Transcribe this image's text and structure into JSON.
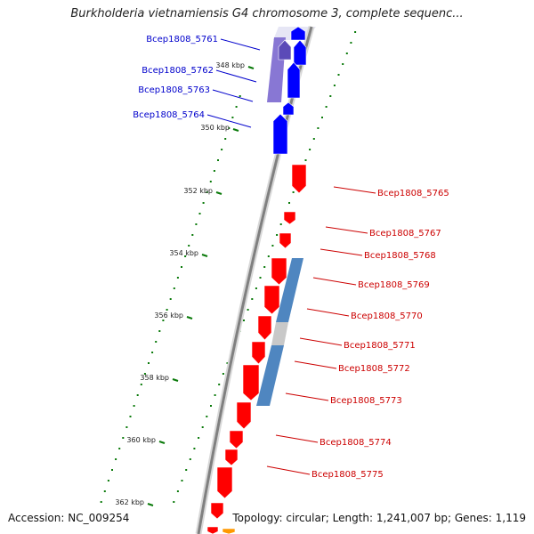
{
  "title": "Burkholderia vietnamiensis G4 chromosome 3, complete sequenc...",
  "footer": {
    "accession": "Accession: NC_009254",
    "topology": "Topology: circular; Length: 1,241,007 bp; Genes: 1,119"
  },
  "colors": {
    "forward_gene": "#ff0000",
    "reverse_gene": "#0000ff",
    "cog_light_blue": "#4f86c0",
    "cog_purple": "#7b68cf",
    "cog_gray": "#cccccc",
    "backbone": "#808080",
    "tick_mark": "#0a7a0a",
    "forward_label": "#cc0000",
    "reverse_label": "#0000cc"
  },
  "ticks": [
    "348 kbp",
    "350 kbp",
    "352 kbp",
    "354 kbp",
    "356 kbp",
    "358 kbp",
    "360 kbp",
    "362 kbp"
  ],
  "genes": [
    {
      "name": "Bcep1808_5761",
      "strand": "reverse"
    },
    {
      "name": "Bcep1808_5762",
      "strand": "reverse"
    },
    {
      "name": "Bcep1808_5763",
      "strand": "reverse"
    },
    {
      "name": "Bcep1808_5764",
      "strand": "reverse"
    },
    {
      "name": "Bcep1808_5765",
      "strand": "forward"
    },
    {
      "name": "Bcep1808_5767",
      "strand": "forward"
    },
    {
      "name": "Bcep1808_5768",
      "strand": "forward"
    },
    {
      "name": "Bcep1808_5769",
      "strand": "forward"
    },
    {
      "name": "Bcep1808_5770",
      "strand": "forward"
    },
    {
      "name": "Bcep1808_5771",
      "strand": "forward"
    },
    {
      "name": "Bcep1808_5772",
      "strand": "forward"
    },
    {
      "name": "Bcep1808_5773",
      "strand": "forward"
    },
    {
      "name": "Bcep1808_5774",
      "strand": "forward"
    },
    {
      "name": "Bcep1808_5775",
      "strand": "forward"
    }
  ]
}
